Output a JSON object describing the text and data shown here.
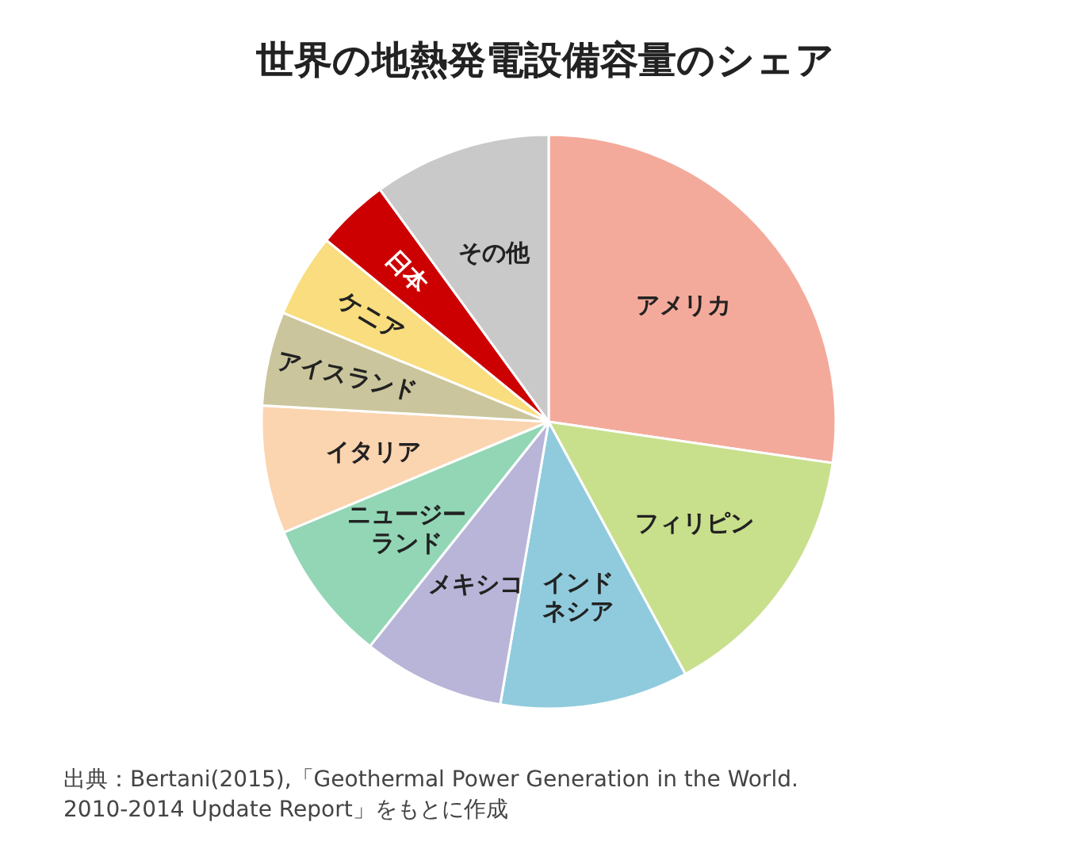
{
  "chart_data": {
    "type": "pie",
    "title": "世界の地熱発電設備容量のシェア",
    "categories": [
      "アメリカ",
      "フィリピン",
      "インドネシア",
      "メキシコ",
      "ニュージーランド",
      "イタリア",
      "アイスランド",
      "ケニア",
      "日本",
      "その他"
    ],
    "values": [
      27.3,
      14.8,
      10.6,
      8.0,
      8.0,
      7.2,
      5.3,
      4.7,
      4.1,
      10.0
    ],
    "colors": [
      "#f4aa9b",
      "#c8df8c",
      "#90cbdd",
      "#b9b5d9",
      "#92d6b6",
      "#fbd4b0",
      "#cac59c",
      "#f9dd7e",
      "#cc0000",
      "#c9c9c9"
    ],
    "annotations": [
      "出典：Bertani(2015),「Geothermal Power Generation in the World.\n2010-2014 Update Report」をもとに作成"
    ]
  }
}
